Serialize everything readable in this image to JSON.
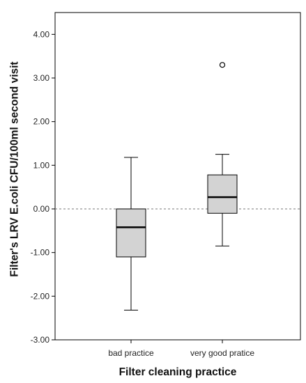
{
  "chart_data": {
    "type": "box",
    "xlabel": "Filter cleaning practice",
    "ylabel": "Filter's LRV E.coli CFU/100ml second visit",
    "ylim": [
      -3.0,
      4.5
    ],
    "yticks": [
      -3.0,
      -2.0,
      -1.0,
      0.0,
      1.0,
      2.0,
      3.0,
      4.0
    ],
    "ytick_labels": [
      "-3.00",
      "-2.00",
      "-1.00",
      "0.00",
      "1.00",
      "2.00",
      "3.00",
      "4.00"
    ],
    "reference_line": {
      "y": 0.0,
      "style": "dashed"
    },
    "box_fill": "#d3d3d3",
    "categories": [
      "bad practice",
      "very good pratice"
    ],
    "boxes": [
      {
        "category": "bad practice",
        "whisker_low": -2.32,
        "q1": -1.1,
        "median": -0.42,
        "q3": 0.0,
        "whisker_high": 1.18,
        "outliers": []
      },
      {
        "category": "very good pratice",
        "whisker_low": -0.85,
        "q1": -0.1,
        "median": 0.27,
        "q3": 0.78,
        "whisker_high": 1.25,
        "outliers": [
          3.3
        ]
      }
    ]
  }
}
